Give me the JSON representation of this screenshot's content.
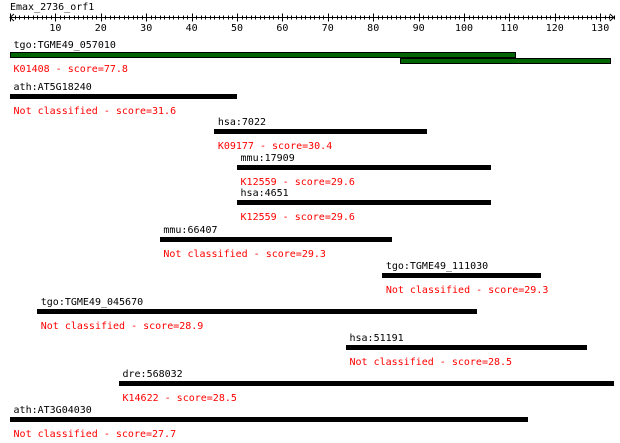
{
  "title": "Emax_2736_orf1",
  "axis": {
    "min": 0,
    "max": 133,
    "tick_labels": [
      "10",
      "20",
      "30",
      "40",
      "50",
      "60",
      "70",
      "80",
      "90",
      "100",
      "110",
      "120",
      "130"
    ]
  },
  "colors": {
    "hit_bar": "#000000",
    "primary_bar": "#006400",
    "classification_text": "#ff0000"
  },
  "hits": [
    {
      "name": "tgo:TGME49_057010",
      "classification": "K01408 - score=77.8",
      "segments": [
        {
          "start": 1,
          "end": 111,
          "color": "primary_bar"
        },
        {
          "start": 87,
          "end": 132,
          "color": "primary_bar"
        }
      ]
    },
    {
      "name": "ath:AT5G18240",
      "classification": "Not classified - score=31.6",
      "segments": [
        {
          "start": 1,
          "end": 50,
          "color": "hit_bar"
        }
      ]
    },
    {
      "name": "hsa:7022",
      "classification": "K09177 - score=30.4",
      "segments": [
        {
          "start": 46,
          "end": 92,
          "color": "hit_bar"
        }
      ]
    },
    {
      "name": "mmu:17909",
      "classification": "K12559 - score=29.6",
      "segments": [
        {
          "start": 51,
          "end": 106,
          "color": "hit_bar"
        }
      ]
    },
    {
      "name": "hsa:4651",
      "classification": "K12559 - score=29.6",
      "segments": [
        {
          "start": 51,
          "end": 106,
          "color": "hit_bar"
        }
      ]
    },
    {
      "name": "mmu:66407",
      "classification": "Not classified - score=29.3",
      "segments": [
        {
          "start": 34,
          "end": 84,
          "color": "hit_bar"
        }
      ]
    },
    {
      "name": "tgo:TGME49_111030",
      "classification": "Not classified - score=29.3",
      "segments": [
        {
          "start": 83,
          "end": 117,
          "color": "hit_bar"
        }
      ]
    },
    {
      "name": "tgo:TGME49_045670",
      "classification": "Not classified - score=28.9",
      "segments": [
        {
          "start": 7,
          "end": 103,
          "color": "hit_bar"
        }
      ]
    },
    {
      "name": "hsa:51191",
      "classification": "Not classified - score=28.5",
      "segments": [
        {
          "start": 75,
          "end": 127,
          "color": "hit_bar"
        }
      ]
    },
    {
      "name": "dre:568032",
      "classification": "K14622 - score=28.5",
      "segments": [
        {
          "start": 25,
          "end": 133,
          "color": "hit_bar"
        }
      ]
    },
    {
      "name": "ath:AT3G04030",
      "classification": "Not classified - score=27.7",
      "segments": [
        {
          "start": 1,
          "end": 114,
          "color": "hit_bar"
        }
      ]
    }
  ]
}
